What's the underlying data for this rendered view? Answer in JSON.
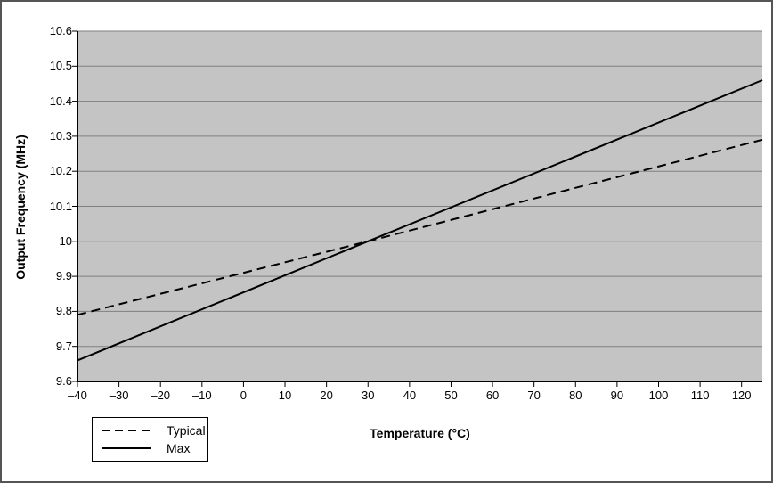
{
  "chart_data": {
    "type": "line",
    "title": "",
    "xlabel": "Temperature (°C)",
    "ylabel": "Output Frequency (MHz)",
    "xlim": [
      -40,
      125
    ],
    "ylim": [
      9.6,
      10.6
    ],
    "x_ticks": [
      -40,
      -30,
      -20,
      -10,
      0,
      10,
      20,
      30,
      40,
      50,
      60,
      70,
      80,
      90,
      100,
      110,
      120
    ],
    "x_tick_labels": [
      "–40",
      "–30",
      "–20",
      "–10",
      "0",
      "10",
      "20",
      "30",
      "40",
      "50",
      "60",
      "70",
      "80",
      "90",
      "100",
      "110",
      "120"
    ],
    "y_ticks": [
      9.6,
      9.7,
      9.8,
      9.9,
      10,
      10.1,
      10.2,
      10.3,
      10.4,
      10.5,
      10.6
    ],
    "y_tick_labels": [
      "9.6",
      "9.7",
      "9.8",
      "9.9",
      "10",
      "10.1",
      "10.2",
      "10.3",
      "10.4",
      "10.5",
      "10.6"
    ],
    "grid": "horizontal",
    "legend_position": "bottom-left-outside",
    "series": [
      {
        "name": "Typical",
        "line_style": "dashed",
        "color": "#000000",
        "points": [
          [
            -40,
            9.79
          ],
          [
            30,
            10.0
          ],
          [
            125,
            10.29
          ]
        ]
      },
      {
        "name": "Max",
        "line_style": "solid",
        "color": "#000000",
        "points": [
          [
            -40,
            9.66
          ],
          [
            30,
            10.0
          ],
          [
            125,
            10.46
          ]
        ]
      }
    ],
    "colors": {
      "plot_bg": "#c4c4c4",
      "gridline": "#808080",
      "axis": "#000000",
      "text": "#000000",
      "canvas_border": "#555555"
    }
  }
}
